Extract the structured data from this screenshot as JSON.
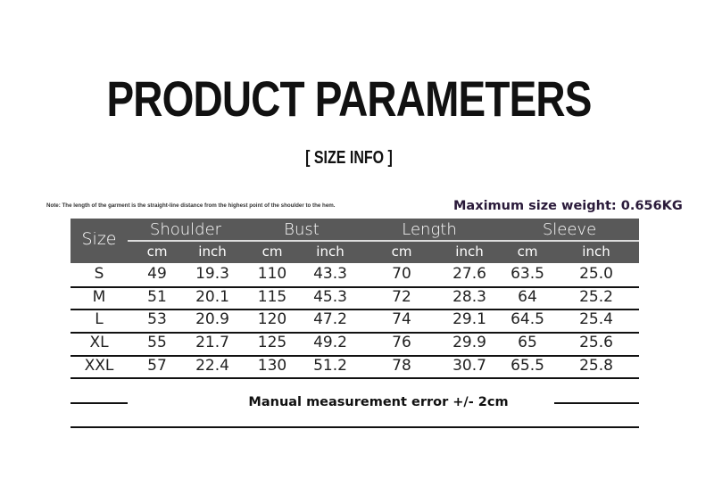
{
  "title": "PRODUCT PARAMETERS",
  "subtitle": "[ SIZE INFO ]",
  "note": "Note: The length of the garment is the straight-line distance from the highest point of the shoulder to the hem.",
  "max_weight": "Maximum size weight: 0.656KG",
  "table": {
    "size_header": "Size",
    "groups": [
      "Shoulder",
      "Bust",
      "Length",
      "Sleeve"
    ],
    "units": [
      "cm",
      "inch",
      "cm",
      "inch",
      "cm",
      "inch",
      "cm",
      "inch"
    ],
    "rows": [
      [
        "S",
        "49",
        "19.3",
        "110",
        "43.3",
        "70",
        "27.6",
        "63.5",
        "25.0"
      ],
      [
        "M",
        "51",
        "20.1",
        "115",
        "45.3",
        "72",
        "28.3",
        "64",
        "25.2"
      ],
      [
        "L",
        "53",
        "20.9",
        "120",
        "47.2",
        "74",
        "29.1",
        "64.5",
        "25.4"
      ],
      [
        "XL",
        "55",
        "21.7",
        "125",
        "49.2",
        "76",
        "29.9",
        "65",
        "25.6"
      ],
      [
        "XXL",
        "57",
        "22.4",
        "130",
        "51.2",
        "78",
        "30.7",
        "65.5",
        "25.8"
      ]
    ]
  },
  "footer": "Manual measurement error +/- 2cm"
}
